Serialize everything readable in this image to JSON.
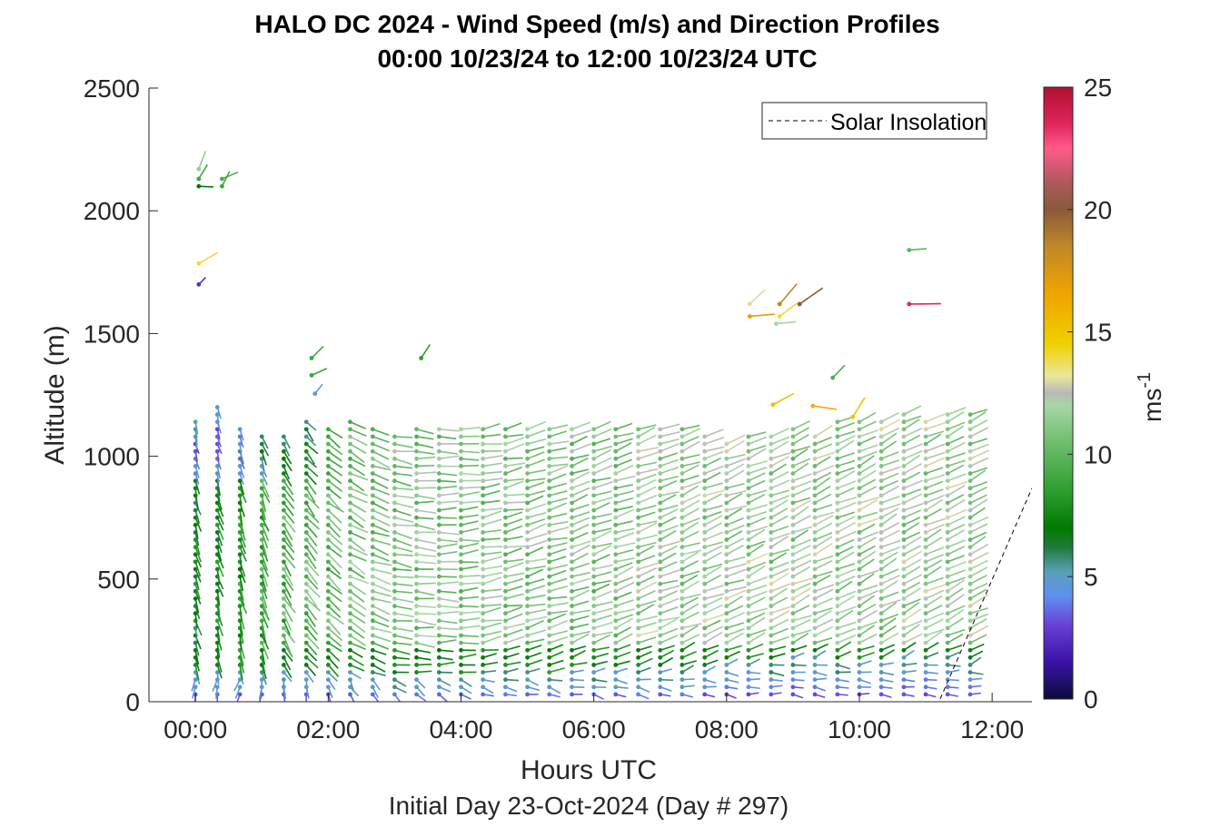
{
  "chart_data": {
    "type": "scatter",
    "title": "HALO DC 2024 - Wind Speed (m/s) and Direction Profiles",
    "subtitle": "00:00 10/23/24 to 12:00 10/23/24  UTC",
    "xlabel": "Hours UTC",
    "xlabel2": "Initial Day 23-Oct-2024 (Day # 297)",
    "ylabel": "Altitude (m)",
    "xlim": [
      -0.7,
      12.6
    ],
    "ylim": [
      0,
      2500
    ],
    "x_ticks": [
      0,
      2,
      4,
      6,
      8,
      10,
      12
    ],
    "x_tick_labels": [
      "00:00",
      "02:00",
      "04:00",
      "06:00",
      "08:00",
      "10:00",
      "12:00"
    ],
    "y_ticks": [
      0,
      500,
      1000,
      1500,
      2000,
      2500
    ],
    "y_tick_labels": [
      "0",
      "500",
      "1000",
      "1500",
      "2000",
      "2500"
    ],
    "legend": {
      "label": "Solar Insolation",
      "placement": "top-right",
      "style": "dashed black"
    },
    "colorbar": {
      "label_base": "ms",
      "label_exp": "-1",
      "range": [
        0,
        25
      ],
      "ticks": [
        0,
        5,
        10,
        15,
        20,
        25
      ],
      "tick_labels": [
        "0",
        "5",
        "10",
        "15",
        "20",
        "25"
      ],
      "stops": [
        [
          0,
          "#0b0b3a"
        ],
        [
          1.5,
          "#3a12a8"
        ],
        [
          3,
          "#6a3fd6"
        ],
        [
          4.2,
          "#5e90ee"
        ],
        [
          5.2,
          "#5a9fb8"
        ],
        [
          6.2,
          "#1f7a3a"
        ],
        [
          7,
          "#007a00"
        ],
        [
          8.5,
          "#2e9e2e"
        ],
        [
          10,
          "#5fb55f"
        ],
        [
          12,
          "#a6d6a6"
        ],
        [
          12.5,
          "#b8b8b8"
        ],
        [
          13.2,
          "#ece79a"
        ],
        [
          14.5,
          "#efd000"
        ],
        [
          16.5,
          "#f0a500"
        ],
        [
          18.5,
          "#c08828"
        ],
        [
          20,
          "#8a5a3a"
        ],
        [
          21,
          "#a85a5a"
        ],
        [
          22.5,
          "#ff5b88"
        ],
        [
          23.5,
          "#e0255a"
        ],
        [
          25,
          "#b01030"
        ]
      ]
    },
    "profile_times_h": [
      0,
      0.33,
      0.67,
      1,
      1.33,
      1.67,
      2,
      2.33,
      2.67,
      3,
      3.33,
      3.67,
      4,
      4.33,
      4.67,
      5,
      5.33,
      5.67,
      6,
      6.33,
      6.67,
      7,
      7.33,
      7.67,
      8,
      8.33,
      8.67,
      9,
      9.33,
      9.67,
      10,
      10.33,
      10.67,
      11,
      11.33,
      11.67
    ],
    "profile_top_altitude_m": [
      1160,
      1200,
      1120,
      1090,
      1090,
      1150,
      1130,
      1150,
      1120,
      1090,
      1110,
      1120,
      1110,
      1130,
      1130,
      1130,
      1130,
      1120,
      1110,
      1120,
      1120,
      1110,
      1110,
      1100,
      1060,
      1080,
      1100,
      1110,
      1100,
      1140,
      1150,
      1160,
      1170,
      1160,
      1170,
      1170
    ],
    "profile_low_wind_top_m": [
      70,
      70,
      60,
      60,
      70,
      70,
      70,
      60,
      60,
      50,
      50,
      60,
      50,
      60,
      60,
      60,
      50,
      60,
      60,
      60,
      60,
      60,
      60,
      70,
      90,
      100,
      110,
      120,
      120,
      110,
      100,
      110,
      120,
      130,
      120,
      90
    ],
    "profile_mid_speed_ms": [
      7,
      7.5,
      8,
      9,
      9.5,
      10,
      10,
      10.5,
      10.5,
      11,
      11,
      11,
      11,
      11,
      11,
      11,
      11,
      11,
      11,
      11,
      11.5,
      11.5,
      11.5,
      11.5,
      11.5,
      11.5,
      11.5,
      11.5,
      11.5,
      11.5,
      11.5,
      11.5,
      11.5,
      11.5,
      11.5,
      11.5
    ],
    "profile_dir_deg": [
      165,
      165,
      165,
      160,
      150,
      140,
      130,
      120,
      110,
      100,
      95,
      90,
      85,
      80,
      78,
      75,
      75,
      72,
      72,
      70,
      70,
      70,
      68,
      68,
      68,
      66,
      66,
      65,
      65,
      65,
      65,
      64,
      64,
      64,
      64,
      64
    ],
    "isolated_barbs": [
      {
        "t": 0.05,
        "alt": 2170,
        "speed": 11.5
      },
      {
        "t": 0.05,
        "alt": 2130,
        "speed": 9
      },
      {
        "t": 0.05,
        "alt": 2100,
        "speed": 7
      },
      {
        "t": 0.4,
        "alt": 2130,
        "speed": 9.5
      },
      {
        "t": 0.4,
        "alt": 2100,
        "speed": 9
      },
      {
        "t": 0.05,
        "alt": 1785,
        "speed": 14
      },
      {
        "t": 0.05,
        "alt": 1700,
        "speed": 2.5
      },
      {
        "t": 1.75,
        "alt": 1400,
        "speed": 9
      },
      {
        "t": 3.4,
        "alt": 1400,
        "speed": 8.5
      },
      {
        "t": 1.75,
        "alt": 1330,
        "speed": 9
      },
      {
        "t": 1.8,
        "alt": 1255,
        "speed": 4.5
      },
      {
        "t": 8.35,
        "alt": 1620,
        "speed": 13
      },
      {
        "t": 8.35,
        "alt": 1570,
        "speed": 17
      },
      {
        "t": 8.8,
        "alt": 1620,
        "speed": 18.5
      },
      {
        "t": 8.8,
        "alt": 1570,
        "speed": 14
      },
      {
        "t": 9.1,
        "alt": 1620,
        "speed": 20
      },
      {
        "t": 8.75,
        "alt": 1540,
        "speed": 12
      },
      {
        "t": 10.75,
        "alt": 1840,
        "speed": 10
      },
      {
        "t": 10.75,
        "alt": 1620,
        "speed": 23.5
      },
      {
        "t": 9.6,
        "alt": 1320,
        "speed": 9.5
      },
      {
        "t": 9.3,
        "alt": 1205,
        "speed": 16
      },
      {
        "t": 8.7,
        "alt": 1210,
        "speed": 15.5
      },
      {
        "t": 9.9,
        "alt": 1160,
        "speed": 15
      }
    ],
    "solar_insolation": {
      "x": [
        -0.7,
        11.2,
        12.6
      ],
      "y": [
        0,
        0,
        870
      ]
    },
    "grid": false
  }
}
